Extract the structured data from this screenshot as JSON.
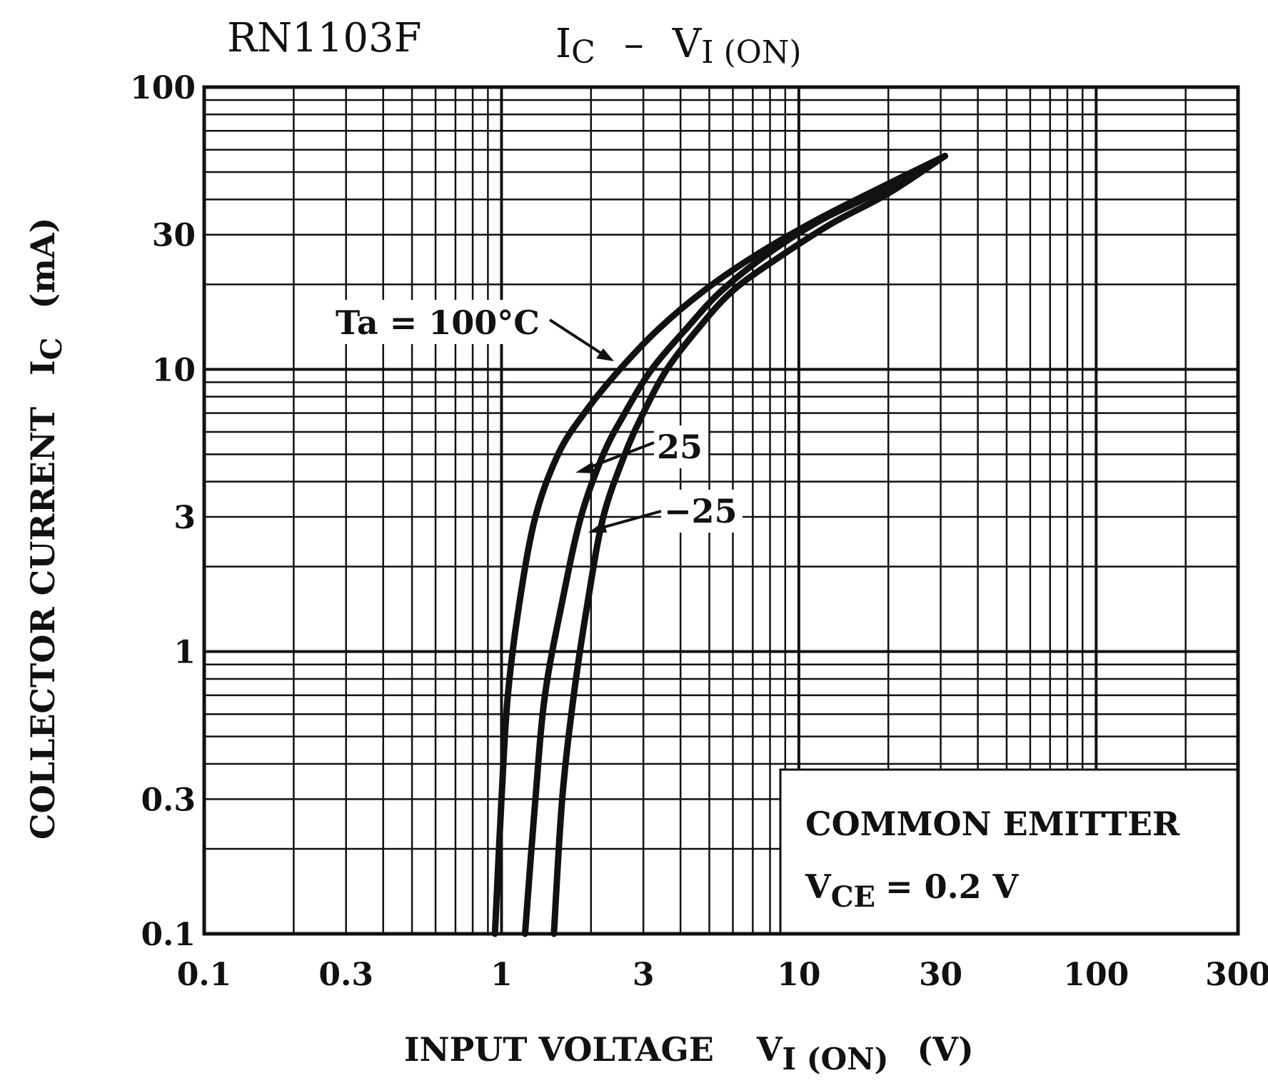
{
  "chart_data": {
    "type": "line",
    "title": {
      "part_number": "RN1103F",
      "left_main": "I",
      "left_sub": "C",
      "dash": "–",
      "right_main": "V",
      "right_sub": "I (ON)"
    },
    "x_scale": "log",
    "y_scale": "log",
    "xlim": [
      0.1,
      300
    ],
    "ylim": [
      0.1,
      100
    ],
    "x_ticks": [
      {
        "value": 0.1,
        "label": "0.1"
      },
      {
        "value": 0.3,
        "label": "0.3"
      },
      {
        "value": 1,
        "label": "1"
      },
      {
        "value": 3,
        "label": "3"
      },
      {
        "value": 10,
        "label": "10"
      },
      {
        "value": 30,
        "label": "30"
      },
      {
        "value": 100,
        "label": "100"
      },
      {
        "value": 300,
        "label": "300"
      }
    ],
    "y_ticks": [
      {
        "value": 0.1,
        "label": "0.1"
      },
      {
        "value": 0.3,
        "label": "0.3"
      },
      {
        "value": 1,
        "label": "1"
      },
      {
        "value": 3,
        "label": "3"
      },
      {
        "value": 10,
        "label": "10"
      },
      {
        "value": 30,
        "label": "30"
      },
      {
        "value": 100,
        "label": "100"
      }
    ],
    "xlabel": {
      "text": "INPUT VOLTAGE",
      "sym": "V",
      "sub": "I (ON)",
      "unit": "(V)"
    },
    "ylabel": {
      "text": "COLLECTOR CURRENT",
      "sym": "I",
      "sub": "C",
      "unit": "(mA)"
    },
    "grid": true,
    "series": [
      {
        "name": "Ta = 100°C",
        "x": [
          0.95,
          1.0,
          1.05,
          1.15,
          1.3,
          1.55,
          1.9,
          2.5,
          3.4,
          4.8,
          7.0,
          11.0,
          18.0,
          31.0
        ],
        "y": [
          0.1,
          0.3,
          0.7,
          1.5,
          3.0,
          5.0,
          7.0,
          10.0,
          14.0,
          19.0,
          25.0,
          33.0,
          43.0,
          57.0
        ]
      },
      {
        "name": "25",
        "x": [
          1.2,
          1.3,
          1.4,
          1.6,
          1.85,
          2.2,
          2.6,
          3.2,
          4.2,
          5.5,
          8.0,
          12.0,
          19.0,
          31.0
        ],
        "y": [
          0.1,
          0.3,
          0.7,
          1.5,
          3.0,
          5.0,
          7.0,
          10.0,
          14.0,
          19.0,
          26.0,
          34.0,
          43.0,
          57.0
        ]
      },
      {
        "name": "−25",
        "x": [
          1.5,
          1.6,
          1.75,
          1.95,
          2.2,
          2.6,
          3.0,
          3.6,
          4.6,
          6.0,
          8.6,
          13.0,
          20.0,
          31.0
        ],
        "y": [
          0.1,
          0.3,
          0.7,
          1.5,
          3.0,
          5.0,
          7.0,
          10.0,
          14.0,
          19.0,
          25.0,
          33.0,
          42.0,
          57.0
        ]
      }
    ],
    "annotations": {
      "ta_label": "Ta = 100°C",
      "label_25": "25",
      "label_neg25": "−25",
      "box_line1": "COMMON EMITTER",
      "box_sym": "V",
      "box_sub": "CE",
      "box_value": "= 0.2 V"
    }
  }
}
